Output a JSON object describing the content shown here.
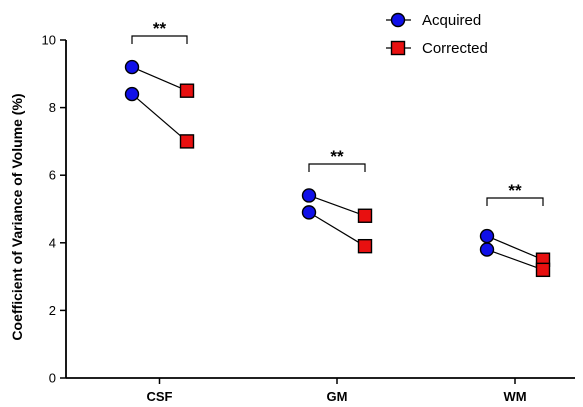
{
  "chart_data": {
    "type": "scatter",
    "ylabel": "Coefficient of Variance of Volume (%)",
    "ylim": [
      0,
      10
    ],
    "yticks": [
      "0",
      "2",
      "4",
      "6",
      "8",
      "10"
    ],
    "categories": [
      "CSF",
      "GM",
      "WM"
    ],
    "series": [
      {
        "name": "Acquired",
        "color": "#1010e8",
        "marker": "circle"
      },
      {
        "name": "Corrected",
        "color": "#e81010",
        "marker": "square"
      }
    ],
    "pairs": [
      {
        "category": "CSF",
        "acquired": 9.2,
        "corrected": 8.5
      },
      {
        "category": "CSF",
        "acquired": 8.4,
        "corrected": 7.0
      },
      {
        "category": "GM",
        "acquired": 5.4,
        "corrected": 4.8
      },
      {
        "category": "GM",
        "acquired": 4.9,
        "corrected": 3.9
      },
      {
        "category": "WM",
        "acquired": 4.2,
        "corrected": 3.5
      },
      {
        "category": "WM",
        "acquired": 3.8,
        "corrected": 3.2
      }
    ],
    "significance": [
      {
        "category": "CSF",
        "label": "**"
      },
      {
        "category": "GM",
        "label": "**"
      },
      {
        "category": "WM",
        "label": "**"
      }
    ],
    "legend_position": "top-right"
  }
}
